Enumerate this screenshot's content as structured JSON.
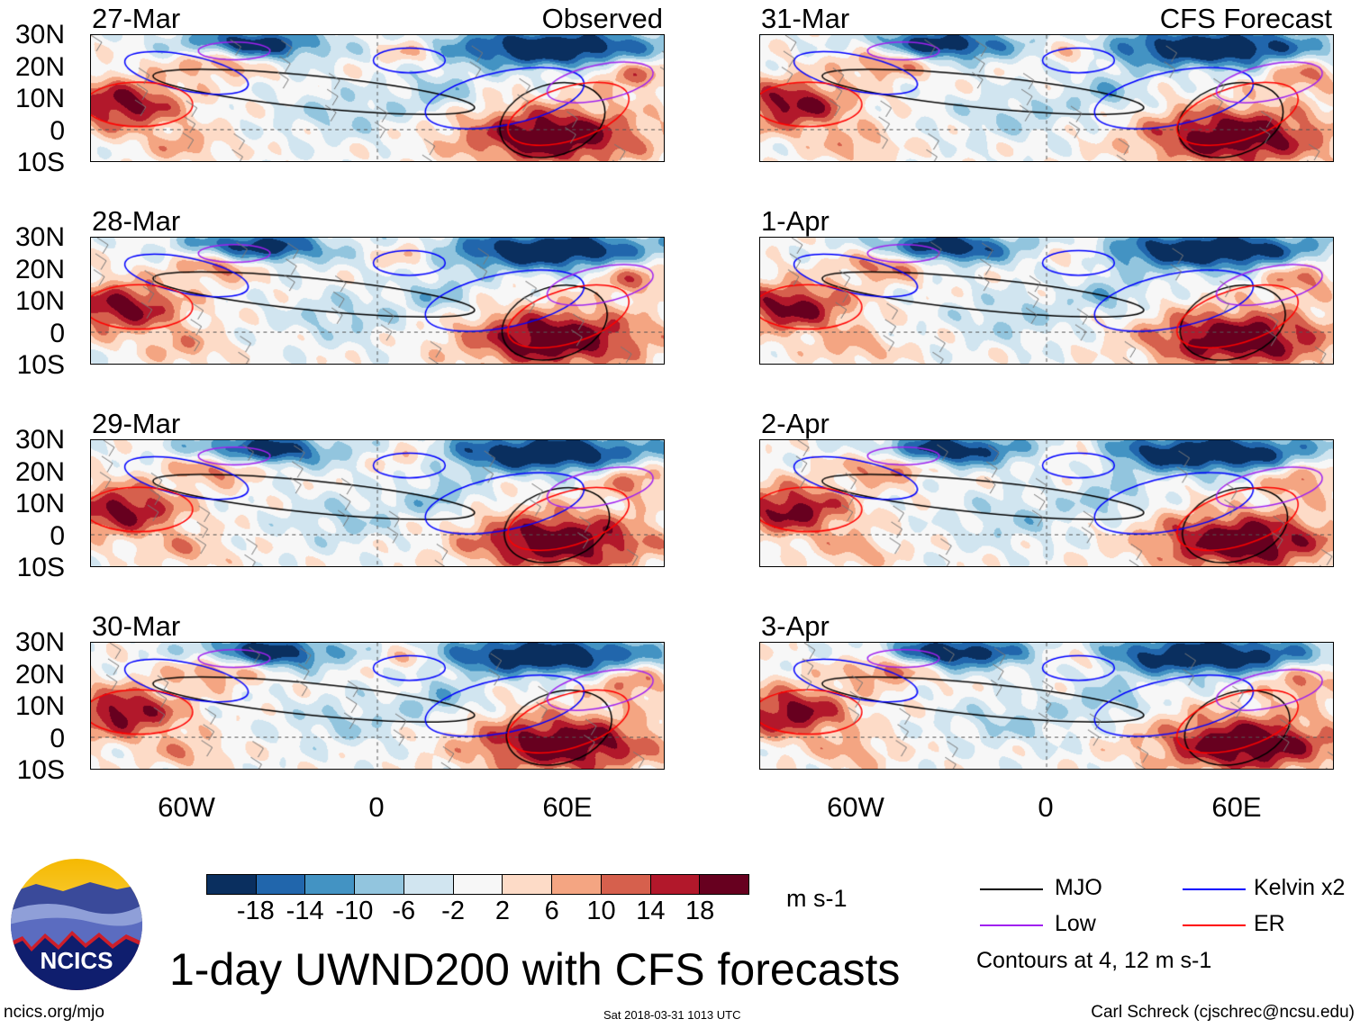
{
  "panels": {
    "observed": {
      "label": "Observed",
      "dates": [
        "27-Mar",
        "28-Mar",
        "29-Mar",
        "30-Mar"
      ]
    },
    "forecast": {
      "label": "CFS Forecast",
      "dates": [
        "31-Mar",
        "1-Apr",
        "2-Apr",
        "3-Apr"
      ]
    }
  },
  "lat_ticks": [
    "30N",
    "20N",
    "10N",
    "0",
    "10S"
  ],
  "lon_ticks": [
    "60W",
    "0",
    "60E"
  ],
  "colorbar": {
    "labels": [
      "-18",
      "-14",
      "-10",
      "-6",
      "-2",
      "2",
      "6",
      "10",
      "14",
      "18"
    ],
    "colors": [
      "#0a2f5f",
      "#2166ac",
      "#4393c3",
      "#92c5de",
      "#d1e5f0",
      "#f7f7f7",
      "#fddbc7",
      "#f4a582",
      "#d6604d",
      "#b2182b",
      "#67001f"
    ],
    "units": "m s-1"
  },
  "legend": {
    "items": [
      {
        "label": "MJO",
        "color": "#000000"
      },
      {
        "label": "Kelvin x2",
        "color": "#0000ff"
      },
      {
        "label": "Low",
        "color": "#a020f0"
      },
      {
        "label": "ER",
        "color": "#ff0000"
      }
    ],
    "note": "Contours at 4, 12 m s-1"
  },
  "title": "1-day UWND200 with CFS forecasts",
  "logo": {
    "text": "NCICS"
  },
  "footer": {
    "url": "ncics.org/mjo",
    "timestamp": "Sat 2018-03-31 1013 UTC",
    "credit": "Carl Schreck (cjschrec@ncsu.edu)"
  }
}
